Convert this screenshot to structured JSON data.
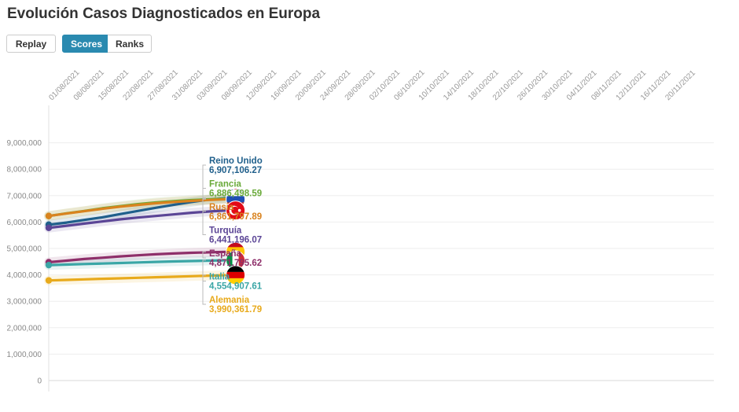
{
  "page": {
    "title": "Evolución Casos Diagnosticados en Europa"
  },
  "controls": {
    "replay_label": "Replay",
    "scores_label": "Scores",
    "ranks_label": "Ranks",
    "active": "Scores"
  },
  "chart_data": {
    "type": "line",
    "title": "Evolución Casos Diagnosticados en Europa",
    "xlabel": "",
    "ylabel": "",
    "ylim": [
      0,
      10000000
    ],
    "y_ticks": [
      0,
      1000000,
      2000000,
      3000000,
      4000000,
      5000000,
      6000000,
      7000000,
      8000000,
      9000000
    ],
    "y_tick_labels": [
      "0",
      "1,000,000",
      "2,000,000",
      "3,000,000",
      "4,000,000",
      "5,000,000",
      "6,000,000",
      "7,000,000",
      "8,000,000",
      "9,000,000"
    ],
    "x_tick_labels": [
      "01/08/2021",
      "08/08/2021",
      "15/08/2021",
      "22/08/2021",
      "27/08/2021",
      "31/08/2021",
      "03/09/2021",
      "08/09/2021",
      "12/09/2021",
      "16/09/2021",
      "20/09/2021",
      "24/09/2021",
      "28/09/2021",
      "02/10/2021",
      "06/10/2021",
      "10/10/2021",
      "14/10/2021",
      "18/10/2021",
      "22/10/2021",
      "26/10/2021",
      "30/10/2021",
      "04/11/2021",
      "08/11/2021",
      "12/11/2021",
      "16/11/2021",
      "20/11/2021"
    ],
    "x_range_days": [
      0,
      112
    ],
    "grid": true,
    "series": [
      {
        "name": "Reino Unido",
        "label": "6,907,106.27",
        "color": "#1f5f8b",
        "flag": "uk-flag-icon",
        "x": [
          0,
          3,
          6,
          9,
          12,
          15,
          18,
          21,
          24,
          27,
          30
        ],
        "y": [
          5900000,
          5980000,
          6080000,
          6180000,
          6300000,
          6420000,
          6540000,
          6650000,
          6760000,
          6850000,
          6907106
        ]
      },
      {
        "name": "Francia",
        "label": "6,886,498.59",
        "color": "#6aaa3a",
        "flag": "france-flag-icon",
        "x": [
          0,
          3,
          6,
          9,
          12,
          15,
          18,
          21,
          24,
          27,
          30
        ],
        "y": [
          6230000,
          6330000,
          6420000,
          6520000,
          6600000,
          6680000,
          6740000,
          6790000,
          6830000,
          6860000,
          6886499
        ]
      },
      {
        "name": "Rusia",
        "label": "6,861,797.89",
        "color": "#d9831f",
        "flag": "russia-flag-icon",
        "x": [
          0,
          3,
          6,
          9,
          12,
          15,
          18,
          21,
          24,
          27,
          30
        ],
        "y": [
          6230000,
          6320000,
          6410000,
          6500000,
          6580000,
          6650000,
          6710000,
          6760000,
          6800000,
          6835000,
          6861798
        ]
      },
      {
        "name": "Turquía",
        "label": "6,441,196.07",
        "color": "#5b4596",
        "flag": "turkey-flag-icon",
        "x": [
          0,
          3,
          6,
          9,
          12,
          15,
          18,
          21,
          24,
          27,
          30
        ],
        "y": [
          5780000,
          5860000,
          5940000,
          6020000,
          6100000,
          6170000,
          6230000,
          6290000,
          6350000,
          6400000,
          6441196
        ]
      },
      {
        "name": "España",
        "label": "4,871,795.62",
        "color": "#8e2f6a",
        "flag": "spain-flag-icon",
        "x": [
          0,
          3,
          6,
          9,
          12,
          15,
          18,
          21,
          24,
          27,
          30
        ],
        "y": [
          4480000,
          4540000,
          4600000,
          4650000,
          4700000,
          4740000,
          4780000,
          4810000,
          4835000,
          4855000,
          4871796
        ]
      },
      {
        "name": "Italia",
        "label": "4,554,907.61",
        "color": "#3aa6a6",
        "flag": "italy-flag-icon",
        "x": [
          0,
          3,
          6,
          9,
          12,
          15,
          18,
          21,
          24,
          27,
          30
        ],
        "y": [
          4370000,
          4390000,
          4410000,
          4430000,
          4450000,
          4470000,
          4490000,
          4510000,
          4525000,
          4540000,
          4554908
        ]
      },
      {
        "name": "Alemania",
        "label": "3,990,361.79",
        "color": "#e8aa1c",
        "flag": "germany-flag-icon",
        "x": [
          0,
          3,
          6,
          9,
          12,
          15,
          18,
          21,
          24,
          27,
          30
        ],
        "y": [
          3790000,
          3810000,
          3830000,
          3850000,
          3870000,
          3890000,
          3910000,
          3930000,
          3950000,
          3970000,
          3990362
        ]
      }
    ]
  }
}
